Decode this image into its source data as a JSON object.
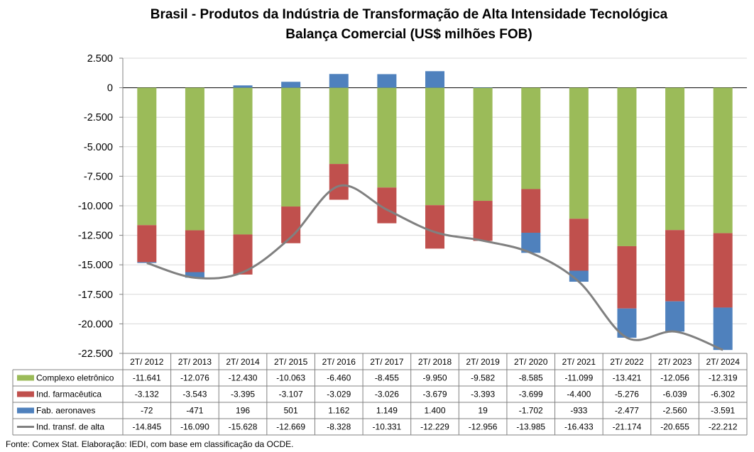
{
  "chart_data": {
    "type": "bar",
    "stacked": true,
    "title": "Brasil - Produtos da Indústria de Transformação de Alta Intensidade Tecnológica",
    "subtitle": "Balança Comercial (US$ milhões FOB)",
    "categories": [
      "2T/ 2012",
      "2T/ 2013",
      "2T/ 2014",
      "2T/ 2015",
      "2T/ 2016",
      "2T/ 2017",
      "2T/ 2018",
      "2T/ 2019",
      "2T/ 2020",
      "2T/ 2021",
      "2T/ 2022",
      "2T/ 2023",
      "2T/ 2024"
    ],
    "ylim": [
      -22500,
      2500
    ],
    "yticks": [
      2500,
      0,
      -2500,
      -5000,
      -7500,
      -10000,
      -12500,
      -15000,
      -17500,
      -20000,
      -22500
    ],
    "ytick_labels": [
      "2.500",
      "0",
      "-2.500",
      "-5.000",
      "-7.500",
      "-10.000",
      "-12.500",
      "-15.000",
      "-17.500",
      "-20.000",
      "-22.500"
    ],
    "legend_placement": "data-table",
    "series": [
      {
        "name": "Complexo eletrônico",
        "kind": "bar",
        "color": "#9BBB59",
        "values": [
          -11641,
          -12076,
          -12430,
          -10063,
          -6460,
          -8455,
          -9950,
          -9582,
          -8585,
          -11099,
          -13421,
          -12056,
          -12319
        ],
        "labels": [
          "-11.641",
          "-12.076",
          "-12.430",
          "-10.063",
          "-6.460",
          "-8.455",
          "-9.950",
          "-9.582",
          "-8.585",
          "-11.099",
          "-13.421",
          "-12.056",
          "-12.319"
        ]
      },
      {
        "name": "Ind. farmacêutica",
        "kind": "bar",
        "color": "#C0504D",
        "values": [
          -3132,
          -3543,
          -3395,
          -3107,
          -3029,
          -3026,
          -3679,
          -3393,
          -3699,
          -4400,
          -5276,
          -6039,
          -6302
        ],
        "labels": [
          "-3.132",
          "-3.543",
          "-3.395",
          "-3.107",
          "-3.029",
          "-3.026",
          "-3.679",
          "-3.393",
          "-3.699",
          "-4.400",
          "-5.276",
          "-6.039",
          "-6.302"
        ]
      },
      {
        "name": "Fab. aeronaves",
        "kind": "bar",
        "color": "#4F81BD",
        "values": [
          -72,
          -471,
          196,
          501,
          1162,
          1149,
          1400,
          19,
          -1702,
          -933,
          -2477,
          -2560,
          -3591
        ],
        "labels": [
          "-72",
          "-471",
          "196",
          "501",
          "1.162",
          "1.149",
          "1.400",
          "19",
          "-1.702",
          "-933",
          "-2.477",
          "-2.560",
          "-3.591"
        ]
      },
      {
        "name": "Ind. transf. de alta",
        "kind": "line",
        "color": "#808080",
        "values": [
          -14845,
          -16090,
          -15628,
          -12669,
          -8328,
          -10331,
          -12229,
          -12956,
          -13985,
          -16433,
          -21174,
          -20655,
          -22212
        ],
        "labels": [
          "-14.845",
          "-16.090",
          "-15.628",
          "-12.669",
          "-8.328",
          "-10.331",
          "-12.229",
          "-12.956",
          "-13.985",
          "-16.433",
          "-21.174",
          "-20.655",
          "-22.212"
        ]
      }
    ],
    "source": "Fonte:  Comex Stat. Elaboração: IEDI, com base em classificação da OCDE."
  }
}
